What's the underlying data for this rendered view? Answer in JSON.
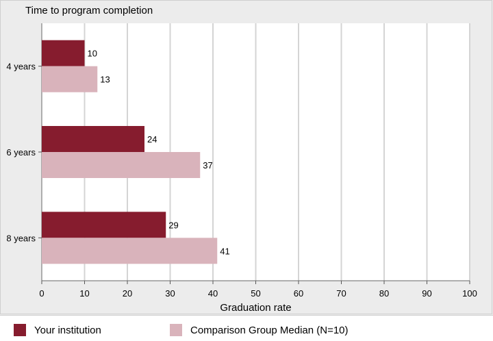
{
  "chart_data": {
    "type": "bar",
    "orientation": "horizontal",
    "title": "Time to program completion",
    "xlabel": "Graduation rate",
    "categories": [
      "4 years",
      "6 years",
      "8 years"
    ],
    "xlim": [
      0,
      100
    ],
    "xticks": [
      0,
      10,
      20,
      30,
      40,
      50,
      60,
      70,
      80,
      90,
      100
    ],
    "grid": true,
    "legend_position": "bottom",
    "series": [
      {
        "name": "Your institution",
        "values": [
          10,
          24,
          29
        ],
        "color": "#861c2e"
      },
      {
        "name": "Comparison Group Median (N=10)",
        "values": [
          13,
          37,
          41
        ],
        "color": "#d9b3bb"
      }
    ]
  }
}
